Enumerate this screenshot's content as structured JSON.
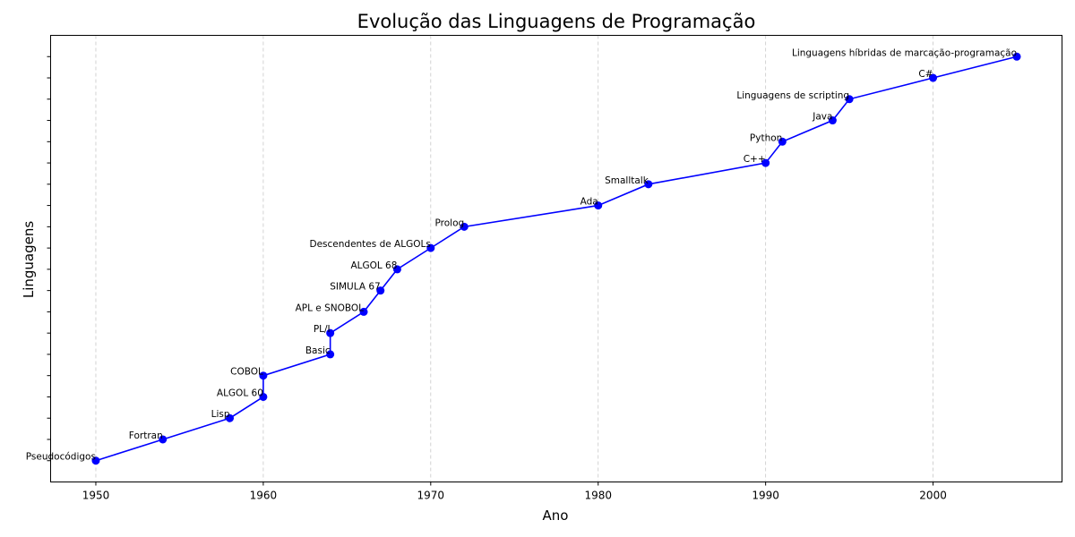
{
  "chart_data": {
    "type": "line",
    "title": "Evolução das Linguagens de Programação",
    "xlabel": "Ano",
    "ylabel": "Linguagens",
    "xlim": [
      1947.3,
      2007.7
    ],
    "ylim": [
      -1,
      20
    ],
    "xticks": [
      1950,
      1960,
      1970,
      1980,
      1990,
      2000
    ],
    "grid": "x-dashed",
    "line_color": "#0000ff",
    "grid_color": "#c8c8c8",
    "points": [
      {
        "year": 1950,
        "label": "Pseudocódigos"
      },
      {
        "year": 1954,
        "label": "Fortran"
      },
      {
        "year": 1958,
        "label": "Lisp"
      },
      {
        "year": 1960,
        "label": "ALGOL 60"
      },
      {
        "year": 1960,
        "label": "COBOL"
      },
      {
        "year": 1964,
        "label": "Basic"
      },
      {
        "year": 1964,
        "label": "PL/I"
      },
      {
        "year": 1966,
        "label": "APL e SNOBOL"
      },
      {
        "year": 1967,
        "label": "SIMULA 67"
      },
      {
        "year": 1968,
        "label": "ALGOL 68"
      },
      {
        "year": 1970,
        "label": "Descendentes de ALGOLs"
      },
      {
        "year": 1972,
        "label": "Prolog"
      },
      {
        "year": 1980,
        "label": "Ada"
      },
      {
        "year": 1983,
        "label": "Smalltalk"
      },
      {
        "year": 1990,
        "label": "C++"
      },
      {
        "year": 1991,
        "label": "Python"
      },
      {
        "year": 1994,
        "label": "Java"
      },
      {
        "year": 1995,
        "label": "Linguagens de scripting"
      },
      {
        "year": 2000,
        "label": "C#"
      },
      {
        "year": 2005,
        "label": "Linguagens híbridas de marcação-programação"
      }
    ]
  }
}
